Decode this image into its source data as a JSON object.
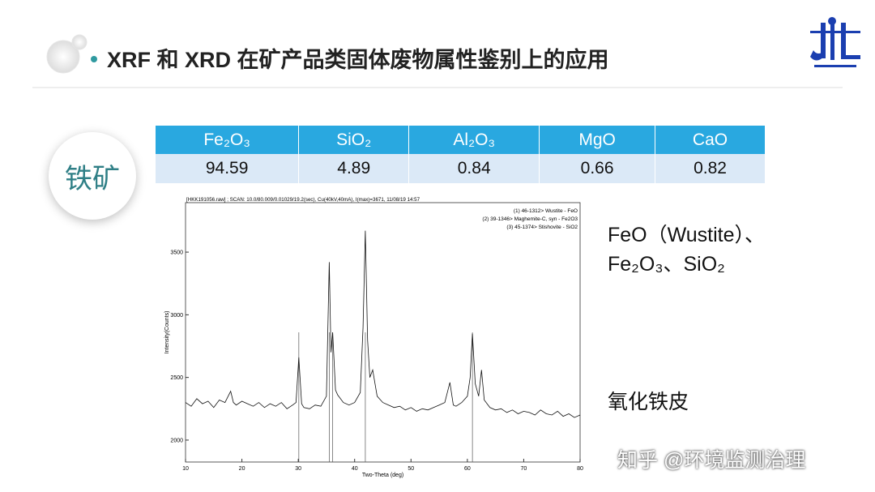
{
  "title": "XRF 和 XRD 在矿产品类固体废物属性鉴别上的应用",
  "badge": "铁矿",
  "table": {
    "header": [
      "Fe₂O₃",
      "SiO₂",
      "Al₂O₃",
      "MgO",
      "CaO"
    ],
    "rows": [
      [
        "94.59",
        "4.89",
        "0.84",
        "0.66",
        "0.82"
      ]
    ]
  },
  "side_text": [
    "FeO（Wustite）、",
    "Fe₂O₃、SiO₂"
  ],
  "note": "氧化铁皮",
  "watermark": "知乎 @环境监测治理",
  "chart_data": {
    "type": "line",
    "header": "[HKK191056.raw] ; SCAN: 10.0/80.009/0.01029/19.2(sec), Cu(40kV,40mA), I(max)=3671, 11/08/19 14:57",
    "legend": [
      "(1) 46-1312> Wustite - FeO",
      "(2) 39-1346> Maghemite-C, syn - Fe2O3",
      "(3) 45-1374> Stishovite - SiO2"
    ],
    "xlabel": "Two-Theta (deg)",
    "ylabel": "Intensity(Counts)",
    "color": "#111111",
    "x": [
      10,
      11,
      12,
      13,
      14,
      15,
      16,
      17,
      18,
      18.5,
      19,
      20,
      21,
      22,
      23,
      24,
      25,
      26,
      27,
      28,
      29,
      29.6,
      30.1,
      30.6,
      31,
      32,
      33,
      34,
      35,
      35.5,
      35.8,
      36.1,
      36.6,
      37,
      38,
      39,
      40,
      41,
      41.5,
      41.9,
      42.3,
      42.7,
      43.2,
      44,
      45,
      46,
      47,
      48,
      49,
      50,
      51,
      52,
      53,
      54,
      55,
      56,
      56.9,
      57.5,
      58,
      59,
      60,
      60.5,
      60.9,
      61.4,
      62,
      62.5,
      63,
      64,
      65,
      66,
      67,
      68,
      69,
      70,
      71,
      72,
      73,
      74,
      75,
      76,
      77,
      78,
      79,
      80
    ],
    "values": [
      2300,
      2270,
      2330,
      2290,
      2310,
      2260,
      2320,
      2300,
      2390,
      2300,
      2280,
      2310,
      2290,
      2270,
      2300,
      2260,
      2290,
      2270,
      2300,
      2250,
      2280,
      2300,
      2660,
      2290,
      2260,
      2250,
      2280,
      2270,
      2350,
      3420,
      2700,
      2860,
      2400,
      2360,
      2300,
      2280,
      2300,
      2380,
      2900,
      3671,
      2800,
      2500,
      2560,
      2350,
      2300,
      2280,
      2260,
      2270,
      2240,
      2260,
      2230,
      2250,
      2240,
      2260,
      2280,
      2300,
      2460,
      2280,
      2270,
      2300,
      2350,
      2500,
      2850,
      2450,
      2350,
      2560,
      2320,
      2260,
      2240,
      2250,
      2220,
      2240,
      2210,
      2230,
      2220,
      2200,
      2240,
      2210,
      2200,
      2230,
      2190,
      2210,
      2180,
      2200
    ],
    "reference_lines": [
      30.1,
      35.5,
      36.1,
      41.9,
      60.9
    ],
    "xlim": [
      10,
      80
    ],
    "ylim": [
      1825,
      3895
    ],
    "xticks": [
      10,
      20,
      30,
      40,
      50,
      60,
      70,
      80
    ],
    "yticks": [
      2000,
      2500,
      3000,
      3500
    ]
  }
}
